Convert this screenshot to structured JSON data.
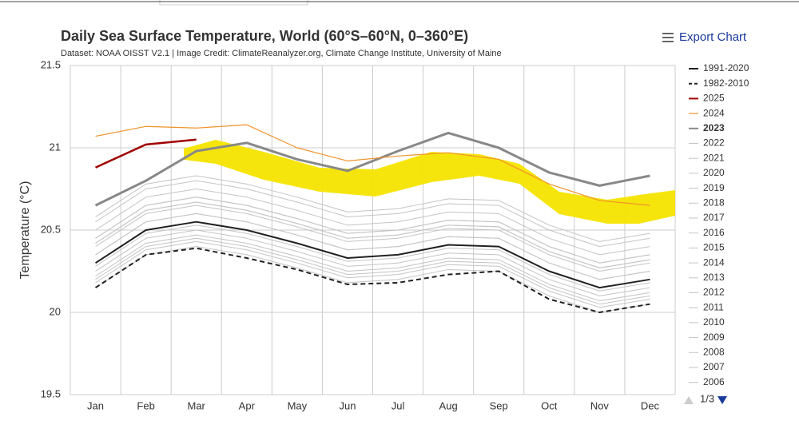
{
  "chart_data": {
    "type": "line",
    "title": "Daily Sea Surface Temperature, World (60°S–60°N, 0–360°E)",
    "subtitle": "Dataset: NOAA OISST V2.1 | Image Credit: ClimateReanalyzer.org, Climate Change Institute, University of Maine",
    "y_label": "Temperature (°C)",
    "export": "Export Chart",
    "pager": "1/3",
    "categories": [
      "Jan",
      "Feb",
      "Mar",
      "Apr",
      "May",
      "Jun",
      "Jul",
      "Aug",
      "Sep",
      "Oct",
      "Nov",
      "Dec"
    ],
    "ylim": [
      19.5,
      21.5
    ],
    "yticks": [
      19.5,
      20,
      20.5,
      21,
      21.5
    ],
    "grid": true,
    "series": [
      {
        "name": "1991-2020",
        "color": "#222222",
        "width": 2,
        "values": [
          20.3,
          20.5,
          20.55,
          20.5,
          20.42,
          20.33,
          20.35,
          20.41,
          20.4,
          20.25,
          20.15,
          20.2
        ]
      },
      {
        "name": "1982-2010",
        "color": "#222222",
        "width": 2,
        "dash": true,
        "values": [
          20.15,
          20.35,
          20.39,
          20.33,
          20.26,
          20.17,
          20.18,
          20.23,
          20.25,
          20.08,
          20.0,
          20.05
        ]
      },
      {
        "name": "2025",
        "color": "#a00000",
        "width": 2.5,
        "values": [
          20.88,
          21.02,
          21.05,
          null,
          null,
          null,
          null,
          null,
          null,
          null,
          null,
          null
        ]
      },
      {
        "name": "2024",
        "color": "#f0932b",
        "width": 1.2,
        "values": [
          21.07,
          21.13,
          21.12,
          21.14,
          21.0,
          20.92,
          20.95,
          20.97,
          20.93,
          20.78,
          20.68,
          20.65
        ]
      },
      {
        "name": "2023",
        "color": "#888888",
        "width": 3,
        "bold": true,
        "values": [
          20.65,
          20.8,
          20.98,
          21.03,
          20.93,
          20.86,
          20.98,
          21.09,
          21.0,
          20.85,
          20.77,
          20.83
        ]
      },
      {
        "name": "2022",
        "color": "#c4c4c4",
        "width": 1,
        "values": [
          20.45,
          20.65,
          20.7,
          20.65,
          20.57,
          20.48,
          20.5,
          20.56,
          20.55,
          20.4,
          20.3,
          20.35
        ]
      },
      {
        "name": "2021",
        "color": "#c4c4c4",
        "width": 1,
        "values": [
          20.42,
          20.62,
          20.67,
          20.62,
          20.54,
          20.45,
          20.47,
          20.53,
          20.52,
          20.37,
          20.27,
          20.32
        ]
      },
      {
        "name": "2020",
        "color": "#c4c4c4",
        "width": 1,
        "values": [
          20.55,
          20.75,
          20.8,
          20.75,
          20.67,
          20.58,
          20.6,
          20.66,
          20.65,
          20.5,
          20.4,
          20.45
        ]
      },
      {
        "name": "2019",
        "color": "#c4c4c4",
        "width": 1,
        "values": [
          20.5,
          20.7,
          20.75,
          20.7,
          20.62,
          20.53,
          20.55,
          20.61,
          20.6,
          20.45,
          20.35,
          20.4
        ]
      },
      {
        "name": "2018",
        "color": "#c4c4c4",
        "width": 1,
        "values": [
          20.4,
          20.6,
          20.65,
          20.6,
          20.52,
          20.43,
          20.45,
          20.51,
          20.5,
          20.35,
          20.25,
          20.3
        ]
      },
      {
        "name": "2017",
        "color": "#c4c4c4",
        "width": 1,
        "values": [
          20.42,
          20.62,
          20.67,
          20.62,
          20.54,
          20.45,
          20.47,
          20.53,
          20.52,
          20.37,
          20.27,
          20.32
        ]
      },
      {
        "name": "2016",
        "color": "#c4c4c4",
        "width": 1,
        "values": [
          20.58,
          20.78,
          20.83,
          20.78,
          20.7,
          20.61,
          20.63,
          20.69,
          20.68,
          20.53,
          20.43,
          20.48
        ]
      },
      {
        "name": "2015",
        "color": "#c4c4c4",
        "width": 1,
        "values": [
          20.45,
          20.65,
          20.7,
          20.65,
          20.57,
          20.48,
          20.5,
          20.56,
          20.55,
          20.4,
          20.3,
          20.35
        ]
      },
      {
        "name": "2014",
        "color": "#c4c4c4",
        "width": 1,
        "values": [
          20.35,
          20.55,
          20.6,
          20.55,
          20.47,
          20.38,
          20.4,
          20.46,
          20.45,
          20.3,
          20.2,
          20.25
        ]
      },
      {
        "name": "2013",
        "color": "#c4c4c4",
        "width": 1,
        "values": [
          20.28,
          20.48,
          20.53,
          20.48,
          20.4,
          20.31,
          20.33,
          20.39,
          20.38,
          20.23,
          20.13,
          20.18
        ]
      },
      {
        "name": "2012",
        "color": "#c4c4c4",
        "width": 1,
        "values": [
          20.3,
          20.5,
          20.55,
          20.5,
          20.42,
          20.33,
          20.35,
          20.41,
          20.4,
          20.25,
          20.15,
          20.2
        ]
      },
      {
        "name": "2011",
        "color": "#c4c4c4",
        "width": 1,
        "values": [
          20.2,
          20.4,
          20.45,
          20.4,
          20.32,
          20.23,
          20.25,
          20.31,
          20.3,
          20.15,
          20.05,
          20.1
        ]
      },
      {
        "name": "2010",
        "color": "#c4c4c4",
        "width": 1,
        "values": [
          20.35,
          20.55,
          20.6,
          20.55,
          20.47,
          20.38,
          20.4,
          20.46,
          20.45,
          20.3,
          20.2,
          20.25
        ]
      },
      {
        "name": "2009",
        "color": "#c4c4c4",
        "width": 1,
        "values": [
          20.25,
          20.45,
          20.5,
          20.45,
          20.37,
          20.28,
          20.3,
          20.36,
          20.35,
          20.2,
          20.1,
          20.15
        ]
      },
      {
        "name": "2008",
        "color": "#c4c4c4",
        "width": 1,
        "values": [
          20.15,
          20.35,
          20.4,
          20.35,
          20.27,
          20.18,
          20.2,
          20.26,
          20.25,
          20.1,
          20.0,
          20.05
        ]
      },
      {
        "name": "2007",
        "color": "#c4c4c4",
        "width": 1,
        "values": [
          20.18,
          20.38,
          20.43,
          20.38,
          20.3,
          20.21,
          20.23,
          20.29,
          20.28,
          20.13,
          20.03,
          20.08
        ]
      },
      {
        "name": "2006",
        "color": "#c4c4c4",
        "width": 1,
        "values": [
          20.22,
          20.42,
          20.47,
          20.42,
          20.34,
          20.25,
          20.27,
          20.33,
          20.32,
          20.17,
          20.07,
          20.12
        ]
      }
    ]
  }
}
